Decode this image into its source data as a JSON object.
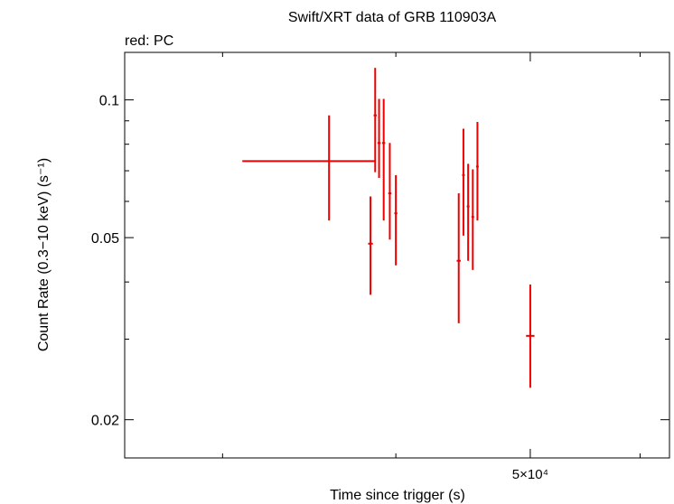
{
  "chart_data": {
    "type": "scatter",
    "title": "Swift/XRT data of GRB 110903A",
    "subtitle": "red: PC",
    "xlabel": "Time since trigger (s)",
    "ylabel": "Count Rate (0.3−10 keV) (s⁻¹)",
    "x_scale": "log",
    "y_scale": "log",
    "xlim": [
      25500,
      63000
    ],
    "ylim": [
      0.0165,
      0.127
    ],
    "y_ticks": [
      {
        "value": 0.1,
        "label": "0.1"
      },
      {
        "value": 0.05,
        "label": "0.05"
      },
      {
        "value": 0.02,
        "label": "0.02"
      }
    ],
    "y_minor_ticks": [
      0.03,
      0.04,
      0.06,
      0.07,
      0.08,
      0.09
    ],
    "x_ticks": [
      {
        "value": 50000,
        "label": "5×10⁴"
      }
    ],
    "x_minor_ticks": [
      30000,
      40000,
      60000
    ],
    "grid": false,
    "series": [
      {
        "color": "#ee0000",
        "points": [
          {
            "x": 35800,
            "xerr": [
              31000,
              38700
            ],
            "y": 0.0735,
            "yerr": [
              0.0545,
              0.0925
            ]
          },
          {
            "x": 38350,
            "xerr": [
              38200,
              38500
            ],
            "y": 0.0485,
            "yerr": [
              0.0375,
              0.0615
            ]
          },
          {
            "x": 38650,
            "xerr": [
              38550,
              38750
            ],
            "y": 0.0925,
            "yerr": [
              0.0695,
              0.1175
            ]
          },
          {
            "x": 38900,
            "xerr": [
              38800,
              39000
            ],
            "y": 0.0805,
            "yerr": [
              0.0675,
              0.1005
            ]
          },
          {
            "x": 39200,
            "xerr": [
              39100,
              39300
            ],
            "y": 0.0805,
            "yerr": [
              0.0545,
              0.1005
            ]
          },
          {
            "x": 39600,
            "xerr": [
              39500,
              39700
            ],
            "y": 0.0625,
            "yerr": [
              0.0495,
              0.0805
            ]
          },
          {
            "x": 40000,
            "xerr": [
              39900,
              40100
            ],
            "y": 0.0565,
            "yerr": [
              0.0435,
              0.0685
            ]
          },
          {
            "x": 44400,
            "xerr": [
              44250,
              44550
            ],
            "y": 0.0445,
            "yerr": [
              0.0325,
              0.0625
            ]
          },
          {
            "x": 44750,
            "xerr": [
              44650,
              44850
            ],
            "y": 0.0685,
            "yerr": [
              0.0505,
              0.0865
            ]
          },
          {
            "x": 45100,
            "xerr": [
              45000,
              45200
            ],
            "y": 0.0585,
            "yerr": [
              0.0445,
              0.0725
            ]
          },
          {
            "x": 45450,
            "xerr": [
              45350,
              45550
            ],
            "y": 0.0555,
            "yerr": [
              0.0425,
              0.0705
            ]
          },
          {
            "x": 45800,
            "xerr": [
              45700,
              45900
            ],
            "y": 0.0715,
            "yerr": [
              0.0545,
              0.0895
            ]
          },
          {
            "x": 50000,
            "xerr": [
              49650,
              50350
            ],
            "y": 0.0305,
            "yerr": [
              0.0235,
              0.0395
            ]
          }
        ]
      }
    ]
  }
}
